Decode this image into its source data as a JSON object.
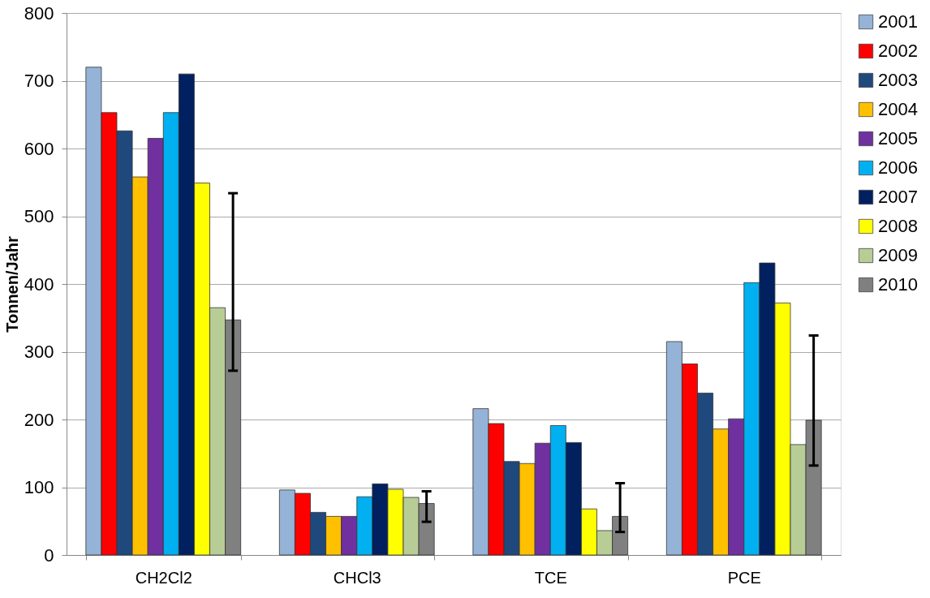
{
  "chart_data": {
    "type": "bar",
    "ylabel": "Tonnen/Jahr",
    "categories": [
      "CH2Cl2",
      "CHCl3",
      "TCE",
      "PCE"
    ],
    "series": [
      {
        "name": "2001",
        "color": "#95b3d7",
        "values": [
          720,
          96,
          216,
          315
        ]
      },
      {
        "name": "2002",
        "color": "#ff0000",
        "values": [
          653,
          91,
          194,
          282
        ]
      },
      {
        "name": "2003",
        "color": "#1f497d",
        "values": [
          626,
          63,
          138,
          239
        ]
      },
      {
        "name": "2004",
        "color": "#ffc000",
        "values": [
          558,
          57,
          135,
          186
        ]
      },
      {
        "name": "2005",
        "color": "#7030a0",
        "values": [
          615,
          57,
          165,
          201
        ]
      },
      {
        "name": "2006",
        "color": "#00b0f0",
        "values": [
          653,
          86,
          191,
          402
        ]
      },
      {
        "name": "2007",
        "color": "#002060",
        "values": [
          710,
          105,
          166,
          431
        ]
      },
      {
        "name": "2008",
        "color": "#ffff00",
        "values": [
          549,
          97,
          68,
          372
        ]
      },
      {
        "name": "2009",
        "color": "#b7cd95",
        "values": [
          365,
          85,
          36,
          163
        ]
      },
      {
        "name": "2010",
        "color": "#808080",
        "values": [
          347,
          76,
          57,
          199
        ],
        "errors": [
          [
            272,
            534
          ],
          [
            49,
            94
          ],
          [
            34,
            106
          ],
          [
            132,
            324
          ]
        ]
      }
    ],
    "ylim": [
      0,
      800
    ],
    "yticks": [
      0,
      100,
      200,
      300,
      400,
      500,
      600,
      700,
      800
    ],
    "grid": "y",
    "legend": "right"
  }
}
